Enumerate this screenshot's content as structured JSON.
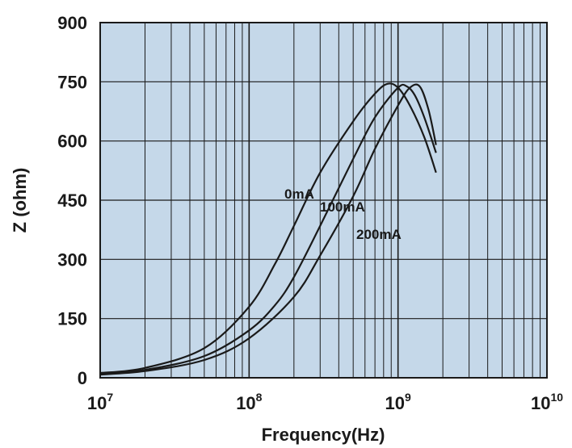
{
  "chart_data": {
    "type": "line",
    "title": "",
    "xlabel": "Frequency(Hz)",
    "ylabel": "Z (ohm)",
    "xscale": "log",
    "xlim": [
      10000000,
      10000000000
    ],
    "ylim": [
      0,
      900
    ],
    "grid": true,
    "plot_background": "#c5d8e9",
    "line_color": "#1a1a1a",
    "x_ticks": [
      {
        "value": 10000000,
        "base": "10",
        "exp": "7"
      },
      {
        "value": 100000000,
        "base": "10",
        "exp": "8"
      },
      {
        "value": 1000000000,
        "base": "10",
        "exp": "9"
      },
      {
        "value": 10000000000,
        "base": "10",
        "exp": "10"
      }
    ],
    "y_ticks": [
      0,
      150,
      300,
      450,
      600,
      750,
      900
    ],
    "series": [
      {
        "name": "0mA",
        "x": [
          10000000,
          20000000,
          50000000,
          100000000,
          150000000,
          200000000,
          300000000,
          500000000,
          700000000,
          850000000,
          1000000000,
          1200000000,
          1500000000,
          1800000000
        ],
        "y": [
          12,
          25,
          75,
          180,
          290,
          385,
          520,
          650,
          720,
          745,
          735,
          690,
          610,
          520
        ]
      },
      {
        "name": "100mA",
        "x": [
          10000000,
          20000000,
          50000000,
          100000000,
          150000000,
          200000000,
          300000000,
          500000000,
          700000000,
          1000000000,
          1150000000,
          1300000000,
          1500000000,
          1800000000
        ],
        "y": [
          10,
          20,
          55,
          120,
          185,
          255,
          385,
          555,
          660,
          735,
          738,
          715,
          660,
          570
        ]
      },
      {
        "name": "200mA",
        "x": [
          10000000,
          20000000,
          50000000,
          100000000,
          200000000,
          300000000,
          500000000,
          700000000,
          1000000000,
          1200000000,
          1400000000,
          1600000000,
          1800000000
        ],
        "y": [
          8,
          17,
          45,
          100,
          205,
          310,
          460,
          580,
          690,
          735,
          738,
          680,
          590
        ]
      }
    ]
  }
}
